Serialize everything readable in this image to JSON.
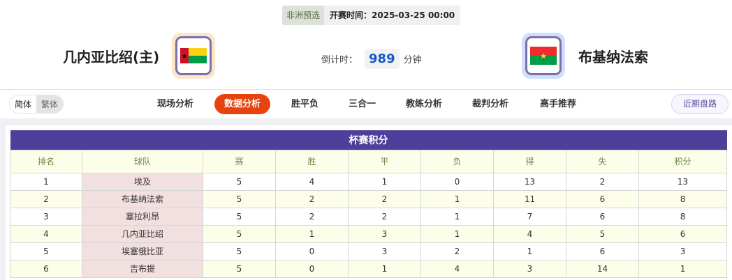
{
  "match": {
    "competition": "非洲预选",
    "start_time": "开赛时间：2025-03-25 00:00"
  },
  "home": {
    "name": "几内亚比绍(主)",
    "flag": "guinea-bissau-flag"
  },
  "away": {
    "name": "布基纳法索",
    "flag": "burkina-faso-flag"
  },
  "countdown": {
    "label": "倒计时：",
    "value": "989",
    "unit": "分钟"
  },
  "lang": {
    "simplified": "简体",
    "traditional": "繁体"
  },
  "tabs": [
    {
      "label": "现场分析"
    },
    {
      "label": "数据分析",
      "active": true
    },
    {
      "label": "胜平负"
    },
    {
      "label": "三合一"
    },
    {
      "label": "教练分析"
    },
    {
      "label": "裁判分析"
    },
    {
      "label": "高手推荐"
    }
  ],
  "recent_button": "近期盘路",
  "colors": {
    "accent": "#e8430e",
    "table_header": "#4f3f9b",
    "countdown": "#1a56c4"
  },
  "standings": {
    "title": "杯赛积分",
    "columns": [
      "排名",
      "球队",
      "赛",
      "胜",
      "平",
      "负",
      "得",
      "失",
      "积分"
    ],
    "rows": [
      [
        "1",
        "埃及",
        "5",
        "4",
        "1",
        "0",
        "13",
        "2",
        "13"
      ],
      [
        "2",
        "布基纳法索",
        "5",
        "2",
        "2",
        "1",
        "11",
        "6",
        "8"
      ],
      [
        "3",
        "塞拉利昂",
        "5",
        "2",
        "2",
        "1",
        "7",
        "6",
        "8"
      ],
      [
        "4",
        "几内亚比绍",
        "5",
        "1",
        "3",
        "1",
        "4",
        "5",
        "6"
      ],
      [
        "5",
        "埃塞俄比亚",
        "5",
        "0",
        "3",
        "2",
        "1",
        "6",
        "3"
      ],
      [
        "6",
        "吉布提",
        "5",
        "0",
        "1",
        "4",
        "3",
        "14",
        "1"
      ]
    ]
  }
}
